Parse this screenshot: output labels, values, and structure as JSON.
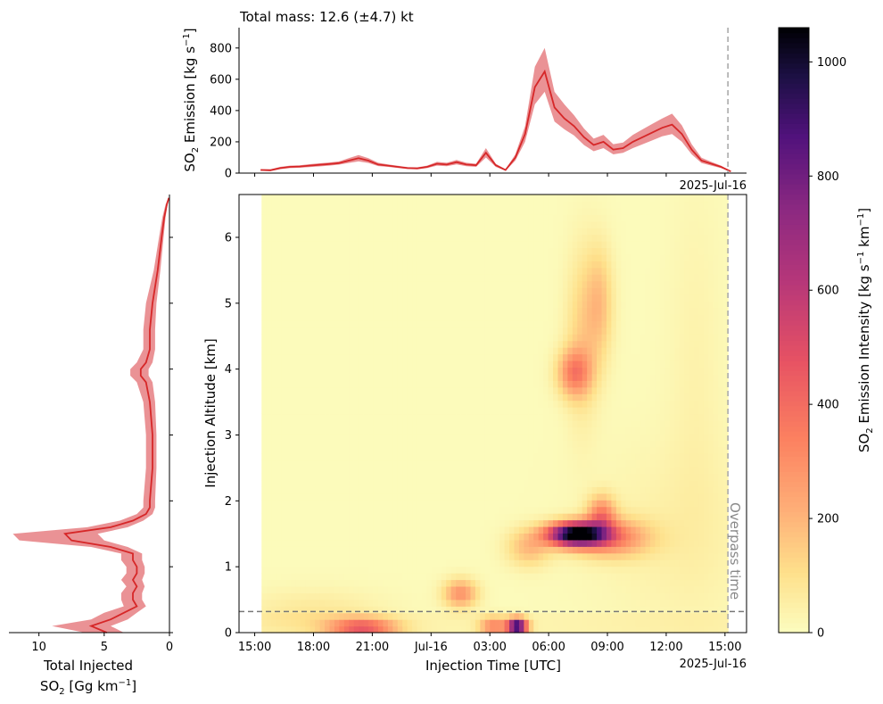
{
  "title": "Total mass: 12.6 (±4.7) kt",
  "annotations": {
    "date_top": "2025-Jul-16",
    "date_bottom": "2025-Jul-16",
    "overpass_label": "Overpass time"
  },
  "colors": {
    "series": "#d62728",
    "band": "#e8868a",
    "overpass_line": "#aaaaaa",
    "ref_line": "#777777"
  },
  "chart_data": [
    {
      "type": "area",
      "panel": "top",
      "ylabel_main": "SO",
      "ylabel_sub": "2",
      "ylabel_rest": " Emission [kg s",
      "ylabel_sup": "−1",
      "ylabel_end": "]",
      "ylim": [
        0,
        930
      ],
      "yticks": [
        0,
        200,
        400,
        600,
        800
      ],
      "x": [
        0.3,
        0.8,
        1.3,
        1.8,
        2.3,
        2.8,
        3.3,
        3.8,
        4.3,
        4.8,
        5.3,
        5.8,
        6.3,
        6.8,
        7.3,
        7.8,
        8.3,
        8.8,
        9.3,
        9.8,
        10.3,
        10.8,
        11.3,
        11.8,
        12.3,
        12.8,
        13.3,
        13.8,
        14.3,
        14.8,
        15.3,
        15.8,
        16.3,
        16.8,
        17.3,
        17.8,
        18.3,
        18.8,
        19.3,
        19.8,
        20.3,
        20.8,
        21.3,
        21.8,
        22.3,
        22.8,
        23.3,
        23.8,
        24.3
      ],
      "y": [
        20,
        18,
        32,
        40,
        42,
        48,
        53,
        58,
        64,
        80,
        95,
        80,
        55,
        48,
        40,
        32,
        30,
        40,
        60,
        55,
        70,
        55,
        50,
        130,
        50,
        20,
        100,
        250,
        550,
        650,
        420,
        350,
        300,
        230,
        180,
        200,
        150,
        160,
        200,
        230,
        260,
        290,
        310,
        250,
        150,
        80,
        60,
        40,
        10
      ],
      "y_low": [
        15,
        12,
        25,
        32,
        34,
        39,
        43,
        48,
        54,
        65,
        75,
        65,
        45,
        40,
        33,
        26,
        24,
        32,
        48,
        44,
        56,
        44,
        40,
        100,
        40,
        15,
        80,
        200,
        440,
        520,
        330,
        280,
        240,
        180,
        140,
        160,
        120,
        130,
        160,
        185,
        210,
        235,
        250,
        200,
        120,
        64,
        48,
        32,
        8
      ],
      "y_high": [
        25,
        24,
        40,
        48,
        50,
        57,
        63,
        68,
        75,
        96,
        116,
        96,
        66,
        56,
        47,
        38,
        37,
        48,
        72,
        66,
        84,
        66,
        60,
        160,
        60,
        25,
        120,
        300,
        680,
        800,
        520,
        440,
        370,
        285,
        220,
        245,
        185,
        195,
        245,
        280,
        315,
        350,
        380,
        305,
        185,
        98,
        72,
        48,
        12
      ]
    },
    {
      "type": "heatmap",
      "panel": "main",
      "xlabel": "Injection Time [UTC]",
      "ylabel": "Injection Altitude [km]",
      "xticks": [
        "15:00",
        "18:00",
        "21:00",
        "Jul-16",
        "03:00",
        "06:00",
        "09:00",
        "12:00",
        "15:00"
      ],
      "xtick_hours": [
        0,
        3,
        6,
        9,
        12,
        15,
        18,
        21,
        24
      ],
      "xlim_hours": [
        -0.8,
        25.1
      ],
      "data_start_hour": 0.35,
      "overpass_hour": 24.15,
      "ylim": [
        0,
        6.65
      ],
      "yticks": [
        0,
        1,
        2,
        3,
        4,
        5,
        6
      ],
      "reference_altitude_km": 0.32,
      "colormap": "magma_r",
      "zlim": [
        0,
        1060
      ],
      "hotspots": [
        {
          "t": 16.4,
          "z": 1.5,
          "peak": 1060,
          "width_h": 1.0,
          "width_km": 0.12
        },
        {
          "t": 16.3,
          "z": 3.95,
          "peak": 300,
          "width_h": 0.6,
          "width_km": 0.25
        },
        {
          "t": 16.7,
          "z": 4.5,
          "peak": 120,
          "width_h": 0.6,
          "width_km": 0.9
        },
        {
          "t": 17.6,
          "z": 5.0,
          "peak": 160,
          "width_h": 0.5,
          "width_km": 0.6
        },
        {
          "t": 18.1,
          "z": 1.45,
          "peak": 320,
          "width_h": 1.4,
          "width_km": 0.2
        },
        {
          "t": 17.7,
          "z": 1.8,
          "peak": 300,
          "width_h": 0.5,
          "width_km": 0.2
        },
        {
          "t": 14.0,
          "z": 1.3,
          "peak": 180,
          "width_h": 0.8,
          "width_km": 0.2
        },
        {
          "t": 5.5,
          "z": 0.08,
          "peak": 420,
          "width_h": 1.2,
          "width_km": 0.1
        },
        {
          "t": 13.4,
          "z": 0.1,
          "peak": 1000,
          "width_h": 0.35,
          "width_km": 0.08
        },
        {
          "t": 12.2,
          "z": 0.1,
          "peak": 300,
          "width_h": 0.5,
          "width_km": 0.1
        },
        {
          "t": 10.5,
          "z": 0.6,
          "peak": 280,
          "width_h": 0.6,
          "width_km": 0.15
        },
        {
          "t": 3.0,
          "z": 0.3,
          "peak": 70,
          "width_h": 2.5,
          "width_km": 0.25
        },
        {
          "t": 21.5,
          "z": 1.5,
          "peak": 40,
          "width_h": 3.0,
          "width_km": 1.0
        },
        {
          "t": 22.5,
          "z": 4.0,
          "peak": 30,
          "width_h": 1.0,
          "width_km": 2.0
        }
      ]
    },
    {
      "type": "line",
      "panel": "left",
      "xlabel_line1": "Total Injected",
      "xlabel_main": "SO",
      "xlabel_sub": "2",
      "xlabel_rest": " [Gg km",
      "xlabel_sup": "−1",
      "xlabel_end": "]",
      "xlim": [
        12.3,
        0
      ],
      "xticks": [
        10,
        5,
        0
      ],
      "altitude": [
        0.0,
        0.1,
        0.2,
        0.3,
        0.4,
        0.5,
        0.6,
        0.7,
        0.8,
        0.9,
        1.0,
        1.1,
        1.2,
        1.3,
        1.4,
        1.5,
        1.6,
        1.7,
        1.8,
        1.9,
        2.0,
        2.5,
        3.0,
        3.5,
        3.8,
        3.9,
        4.0,
        4.1,
        4.3,
        4.6,
        5.0,
        5.5,
        6.0,
        6.3,
        6.5,
        6.6
      ],
      "value": [
        4.8,
        6.0,
        4.5,
        3.5,
        2.5,
        2.8,
        2.8,
        2.5,
        2.8,
        2.5,
        2.5,
        2.8,
        2.8,
        4.5,
        7.5,
        8.0,
        4.5,
        2.8,
        1.8,
        1.5,
        1.5,
        1.3,
        1.3,
        1.5,
        1.8,
        2.2,
        2.2,
        1.8,
        1.5,
        1.5,
        1.3,
        0.9,
        0.6,
        0.4,
        0.2,
        0.05
      ],
      "low": [
        3.5,
        4.5,
        3.2,
        2.5,
        1.8,
        2.1,
        2.1,
        1.9,
        2.1,
        1.9,
        1.9,
        2.1,
        2.1,
        3.2,
        5.0,
        5.5,
        3.2,
        2.0,
        1.3,
        1.1,
        1.1,
        1.0,
        1.0,
        1.1,
        1.3,
        1.6,
        1.6,
        1.3,
        1.1,
        1.1,
        1.0,
        0.7,
        0.45,
        0.3,
        0.15,
        0.03
      ],
      "high": [
        6.5,
        9.0,
        6.0,
        5.0,
        3.5,
        3.7,
        3.7,
        3.3,
        3.7,
        3.3,
        3.3,
        3.7,
        3.7,
        6.0,
        11.5,
        12.0,
        6.3,
        3.8,
        2.5,
        2.0,
        2.0,
        1.8,
        1.8,
        2.0,
        2.5,
        3.0,
        3.0,
        2.5,
        2.0,
        2.0,
        1.8,
        1.2,
        0.8,
        0.55,
        0.3,
        0.08
      ]
    },
    {
      "type": "colorbar",
      "label_main": "SO",
      "label_sub": "2",
      "label_rest": " Emission Intensity [kg s",
      "label_sup1": "−1",
      "label_mid": " km",
      "label_sup2": "−1",
      "label_end": "]",
      "zlim": [
        0,
        1060
      ],
      "ticks": [
        0,
        200,
        400,
        600,
        800,
        1000
      ]
    }
  ]
}
